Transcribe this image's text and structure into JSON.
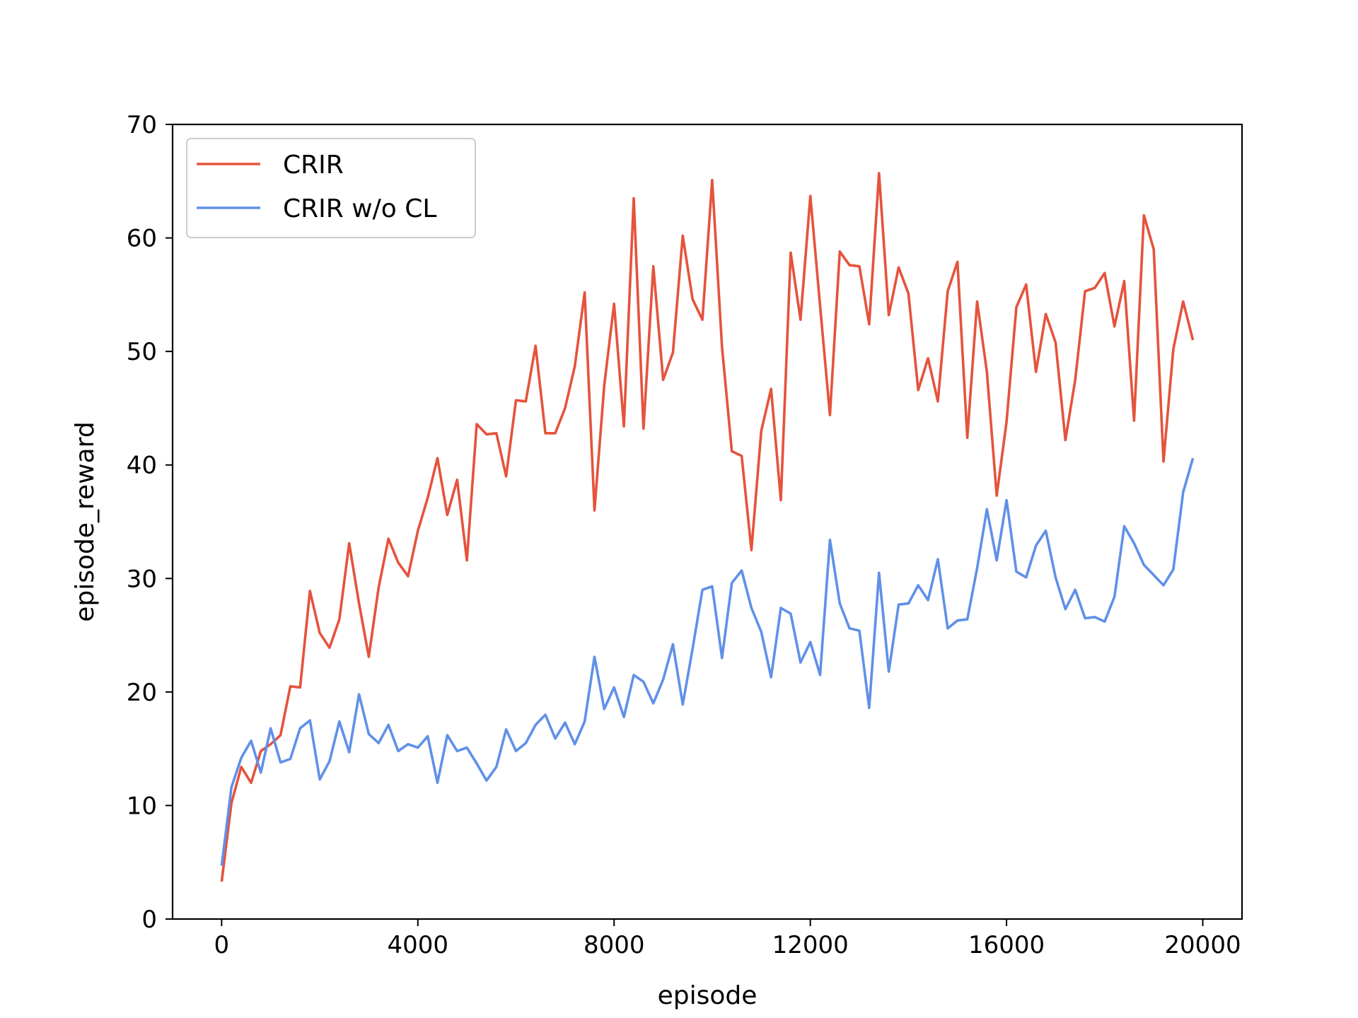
{
  "chart_data": {
    "type": "line",
    "xlabel": "episode",
    "ylabel": "episode_reward",
    "xlim": [
      -1000,
      20800
    ],
    "ylim": [
      0,
      70
    ],
    "xticks": [
      0,
      4000,
      8000,
      12000,
      16000,
      20000
    ],
    "yticks": [
      0,
      10,
      20,
      30,
      40,
      50,
      60,
      70
    ],
    "grid": false,
    "legend_position": "upper-left",
    "series": [
      {
        "name": "CRIR",
        "color": "#e5533c",
        "x": [
          0,
          200,
          400,
          600,
          800,
          1000,
          1200,
          1400,
          1600,
          1800,
          2000,
          2200,
          2400,
          2600,
          2800,
          3000,
          3200,
          3400,
          3600,
          3800,
          4000,
          4200,
          4400,
          4600,
          4800,
          5000,
          5200,
          5400,
          5600,
          5800,
          6000,
          6200,
          6400,
          6600,
          6800,
          7000,
          7200,
          7400,
          7600,
          7800,
          8000,
          8200,
          8400,
          8600,
          8800,
          9000,
          9200,
          9400,
          9600,
          9800,
          10000,
          10200,
          10400,
          10600,
          10800,
          11000,
          11200,
          11400,
          11600,
          11800,
          12000,
          12200,
          12400,
          12600,
          12800,
          13000,
          13200,
          13400,
          13600,
          13800,
          14000,
          14200,
          14400,
          14600,
          14800,
          15000,
          15200,
          15400,
          15600,
          15800,
          16000,
          16200,
          16400,
          16600,
          16800,
          17000,
          17200,
          17400,
          17600,
          17800,
          18000,
          18200,
          18400,
          18600,
          18800,
          19000,
          19200,
          19400,
          19600,
          19800
        ],
        "values": [
          3.3,
          10.2,
          13.4,
          12.0,
          14.8,
          15.4,
          16.2,
          20.5,
          20.4,
          28.9,
          25.2,
          23.9,
          26.4,
          33.1,
          27.8,
          23.1,
          29.2,
          33.5,
          31.4,
          30.2,
          34.2,
          37.1,
          40.6,
          35.6,
          38.7,
          31.6,
          43.6,
          42.7,
          42.8,
          39.0,
          45.7,
          45.6,
          50.5,
          42.8,
          42.8,
          45.0,
          48.7,
          55.2,
          36.0,
          47.0,
          54.2,
          43.4,
          63.5,
          43.2,
          57.5,
          47.5,
          49.9,
          60.2,
          54.6,
          52.8,
          65.1,
          50.4,
          41.2,
          40.8,
          32.5,
          43.0,
          46.7,
          36.9,
          58.7,
          52.8,
          63.7,
          54.0,
          44.4,
          58.8,
          57.6,
          57.5,
          52.4,
          65.7,
          53.2,
          57.4,
          55.1,
          46.6,
          49.4,
          45.6,
          55.3,
          57.9,
          42.4,
          54.4,
          48.2,
          37.3,
          43.8,
          53.9,
          55.9,
          48.2,
          53.3,
          50.8,
          42.2,
          47.5,
          55.3,
          55.6,
          56.9,
          52.2,
          56.2,
          43.9,
          62.0,
          59.0,
          40.3,
          50.2,
          54.4,
          51.0
        ]
      },
      {
        "name": "CRIR w/o CL",
        "color": "#6090e8",
        "x": [
          0,
          200,
          400,
          600,
          800,
          1000,
          1200,
          1400,
          1600,
          1800,
          2000,
          2200,
          2400,
          2600,
          2800,
          3000,
          3200,
          3400,
          3600,
          3800,
          4000,
          4200,
          4400,
          4600,
          4800,
          5000,
          5200,
          5400,
          5600,
          5800,
          6000,
          6200,
          6400,
          6600,
          6800,
          7000,
          7200,
          7400,
          7600,
          7800,
          8000,
          8200,
          8400,
          8600,
          8800,
          9000,
          9200,
          9400,
          9600,
          9800,
          10000,
          10200,
          10400,
          10600,
          10800,
          11000,
          11200,
          11400,
          11600,
          11800,
          12000,
          12200,
          12400,
          12600,
          12800,
          13000,
          13200,
          13400,
          13600,
          13800,
          14000,
          14200,
          14400,
          14600,
          14800,
          15000,
          15200,
          15400,
          15600,
          15800,
          16000,
          16200,
          16400,
          16600,
          16800,
          17000,
          17200,
          17400,
          17600,
          17800,
          18000,
          18200,
          18400,
          18600,
          18800,
          19000,
          19200,
          19400,
          19600,
          19800
        ],
        "values": [
          4.7,
          11.6,
          14.2,
          15.7,
          12.9,
          16.8,
          13.8,
          14.1,
          16.8,
          17.5,
          12.3,
          13.9,
          17.4,
          14.7,
          19.8,
          16.3,
          15.5,
          17.1,
          14.8,
          15.4,
          15.1,
          16.1,
          12.0,
          16.2,
          14.8,
          15.1,
          13.7,
          12.2,
          13.4,
          16.7,
          14.8,
          15.5,
          17.1,
          18.0,
          15.9,
          17.3,
          15.4,
          17.4,
          23.1,
          18.5,
          20.4,
          17.8,
          21.5,
          20.9,
          19.0,
          21.1,
          24.2,
          18.9,
          23.8,
          29.0,
          29.3,
          23.0,
          29.6,
          30.7,
          27.4,
          25.3,
          21.3,
          27.4,
          26.9,
          22.6,
          24.4,
          21.5,
          33.4,
          27.8,
          25.6,
          25.4,
          18.6,
          30.5,
          21.8,
          27.7,
          27.8,
          29.4,
          28.1,
          31.7,
          25.6,
          26.3,
          26.4,
          30.9,
          36.1,
          31.6,
          36.9,
          30.6,
          30.1,
          32.9,
          34.2,
          30.1,
          27.3,
          29.0,
          26.5,
          26.6,
          26.2,
          28.4,
          34.6,
          33.1,
          31.2,
          30.3,
          29.4,
          30.8,
          37.6,
          40.6
        ]
      }
    ]
  }
}
